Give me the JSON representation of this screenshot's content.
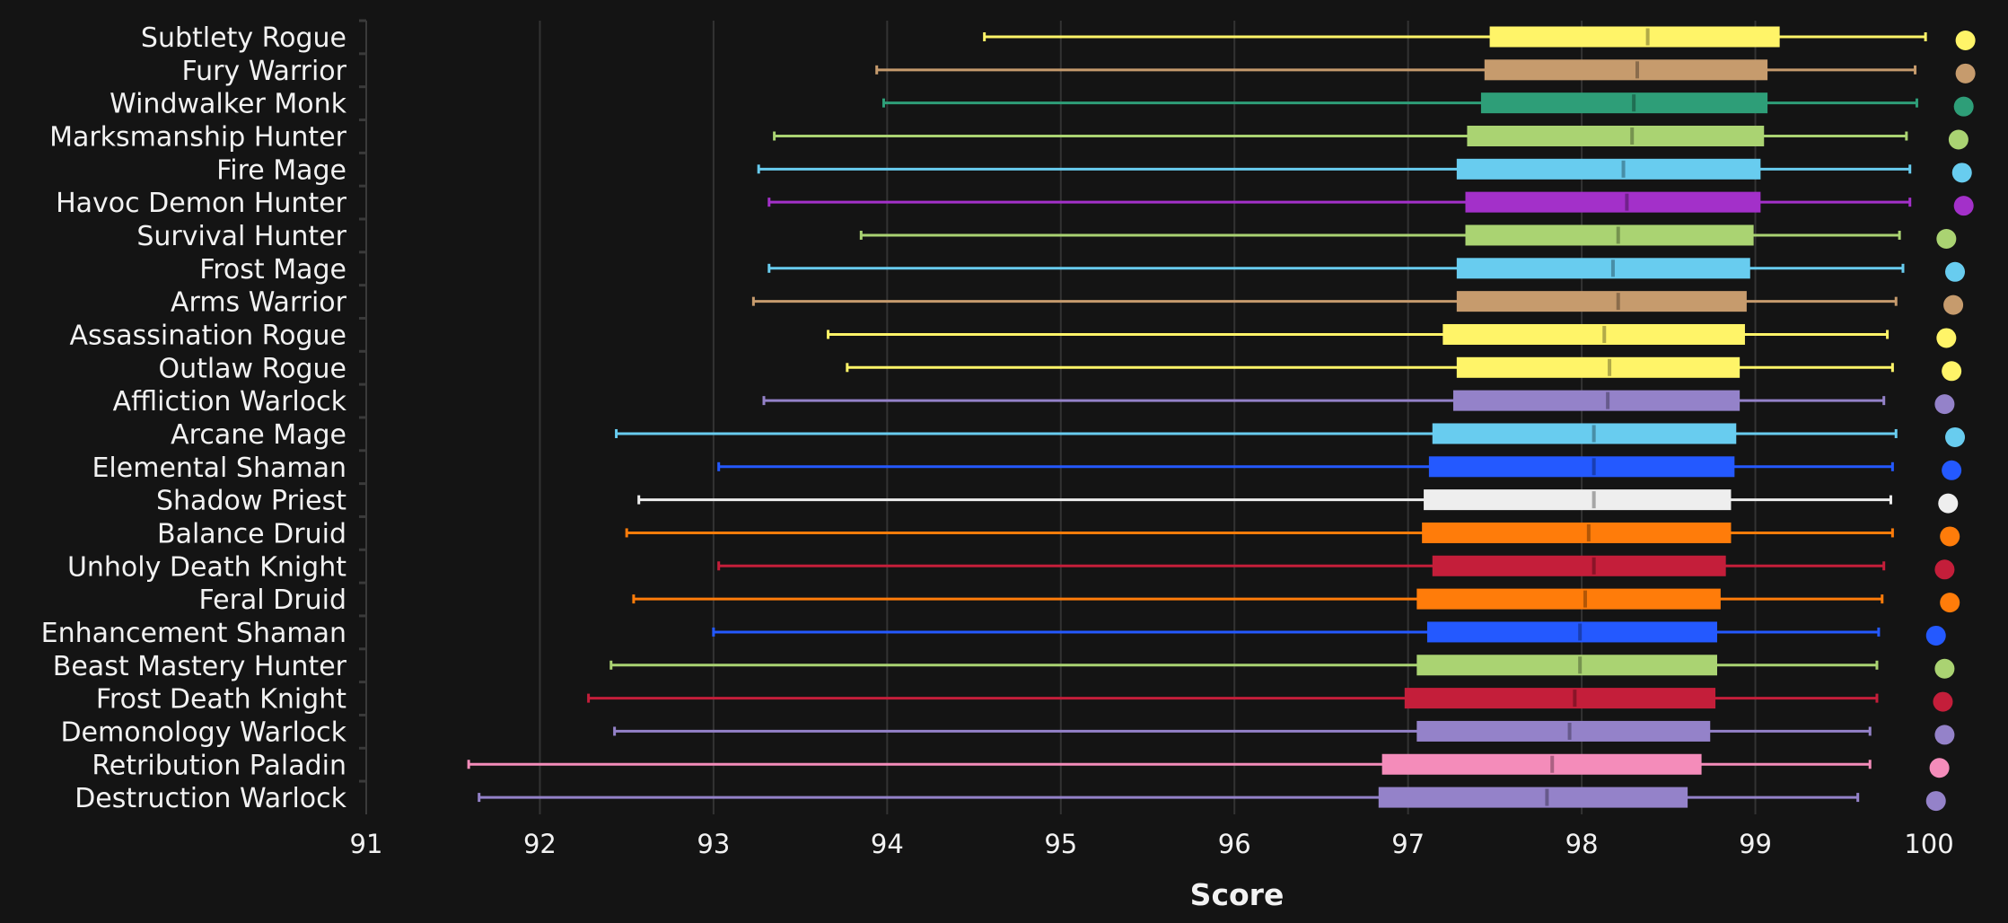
{
  "chart_data": {
    "type": "boxplot",
    "title": "",
    "xlabel": "Score",
    "ylabel": "",
    "xlim": [
      91,
      100
    ],
    "xticks": [
      91,
      92,
      93,
      94,
      95,
      96,
      97,
      98,
      99,
      100
    ],
    "grid": "vertical",
    "series": [
      {
        "name": "Subtlety Rogue",
        "color": "#FFF468",
        "min": 94.56,
        "q1": 97.47,
        "median": 98.38,
        "q3": 99.14,
        "max": 99.98,
        "dot": 100.21
      },
      {
        "name": "Fury Warrior",
        "color": "#C69B6D",
        "min": 93.94,
        "q1": 97.44,
        "median": 98.32,
        "q3": 99.07,
        "max": 99.92,
        "dot": 100.21
      },
      {
        "name": "Windwalker Monk",
        "color": "#2E9E78",
        "min": 93.98,
        "q1": 97.42,
        "median": 98.3,
        "q3": 99.07,
        "max": 99.93,
        "dot": 100.2
      },
      {
        "name": "Marksmanship Hunter",
        "color": "#AAD372",
        "min": 93.35,
        "q1": 97.34,
        "median": 98.29,
        "q3": 99.05,
        "max": 99.87,
        "dot": 100.17
      },
      {
        "name": "Fire Mage",
        "color": "#68CCEF",
        "min": 93.26,
        "q1": 97.28,
        "median": 98.24,
        "q3": 99.03,
        "max": 99.89,
        "dot": 100.19
      },
      {
        "name": "Havoc Demon Hunter",
        "color": "#A330C9",
        "min": 93.32,
        "q1": 97.33,
        "median": 98.26,
        "q3": 99.03,
        "max": 99.89,
        "dot": 100.2
      },
      {
        "name": "Survival Hunter",
        "color": "#AAD372",
        "min": 93.85,
        "q1": 97.33,
        "median": 98.21,
        "q3": 98.99,
        "max": 99.83,
        "dot": 100.1
      },
      {
        "name": "Frost Mage",
        "color": "#68CCEF",
        "min": 93.32,
        "q1": 97.28,
        "median": 98.18,
        "q3": 98.97,
        "max": 99.85,
        "dot": 100.15
      },
      {
        "name": "Arms Warrior",
        "color": "#C69B6D",
        "min": 93.23,
        "q1": 97.28,
        "median": 98.21,
        "q3": 98.95,
        "max": 99.81,
        "dot": 100.14
      },
      {
        "name": "Assassination Rogue",
        "color": "#FFF468",
        "min": 93.66,
        "q1": 97.2,
        "median": 98.13,
        "q3": 98.94,
        "max": 99.76,
        "dot": 100.1
      },
      {
        "name": "Outlaw Rogue",
        "color": "#FFF468",
        "min": 93.77,
        "q1": 97.28,
        "median": 98.16,
        "q3": 98.91,
        "max": 99.79,
        "dot": 100.13
      },
      {
        "name": "Affliction Warlock",
        "color": "#9482C9",
        "min": 93.29,
        "q1": 97.26,
        "median": 98.15,
        "q3": 98.91,
        "max": 99.74,
        "dot": 100.09
      },
      {
        "name": "Arcane Mage",
        "color": "#68CCEF",
        "min": 92.44,
        "q1": 97.14,
        "median": 98.07,
        "q3": 98.89,
        "max": 99.81,
        "dot": 100.15
      },
      {
        "name": "Elemental Shaman",
        "color": "#2459FF",
        "min": 93.03,
        "q1": 97.12,
        "median": 98.07,
        "q3": 98.88,
        "max": 99.79,
        "dot": 100.13
      },
      {
        "name": "Shadow Priest",
        "color": "#EEEEEE",
        "min": 92.57,
        "q1": 97.09,
        "median": 98.07,
        "q3": 98.86,
        "max": 99.78,
        "dot": 100.11
      },
      {
        "name": "Balance Druid",
        "color": "#FF7C0A",
        "min": 92.5,
        "q1": 97.08,
        "median": 98.04,
        "q3": 98.86,
        "max": 99.79,
        "dot": 100.12
      },
      {
        "name": "Unholy Death Knight",
        "color": "#C41E3A",
        "min": 93.03,
        "q1": 97.14,
        "median": 98.07,
        "q3": 98.83,
        "max": 99.74,
        "dot": 100.09
      },
      {
        "name": "Feral Druid",
        "color": "#FF7C0A",
        "min": 92.54,
        "q1": 97.05,
        "median": 98.02,
        "q3": 98.8,
        "max": 99.73,
        "dot": 100.12
      },
      {
        "name": "Enhancement Shaman",
        "color": "#2459FF",
        "min": 93.0,
        "q1": 97.11,
        "median": 97.99,
        "q3": 98.78,
        "max": 99.71,
        "dot": 100.04
      },
      {
        "name": "Beast Mastery Hunter",
        "color": "#AAD372",
        "min": 92.41,
        "q1": 97.05,
        "median": 97.99,
        "q3": 98.78,
        "max": 99.7,
        "dot": 100.09
      },
      {
        "name": "Frost Death Knight",
        "color": "#C41E3A",
        "min": 92.28,
        "q1": 96.98,
        "median": 97.96,
        "q3": 98.77,
        "max": 99.7,
        "dot": 100.08
      },
      {
        "name": "Demonology Warlock",
        "color": "#9482C9",
        "min": 92.43,
        "q1": 97.05,
        "median": 97.93,
        "q3": 98.74,
        "max": 99.66,
        "dot": 100.09
      },
      {
        "name": "Retribution Paladin",
        "color": "#F48CBA",
        "min": 91.59,
        "q1": 96.85,
        "median": 97.83,
        "q3": 98.69,
        "max": 99.66,
        "dot": 100.06
      },
      {
        "name": "Destruction Warlock",
        "color": "#9482C9",
        "min": 91.65,
        "q1": 96.83,
        "median": 97.8,
        "q3": 98.61,
        "max": 99.59,
        "dot": 100.04
      }
    ]
  }
}
